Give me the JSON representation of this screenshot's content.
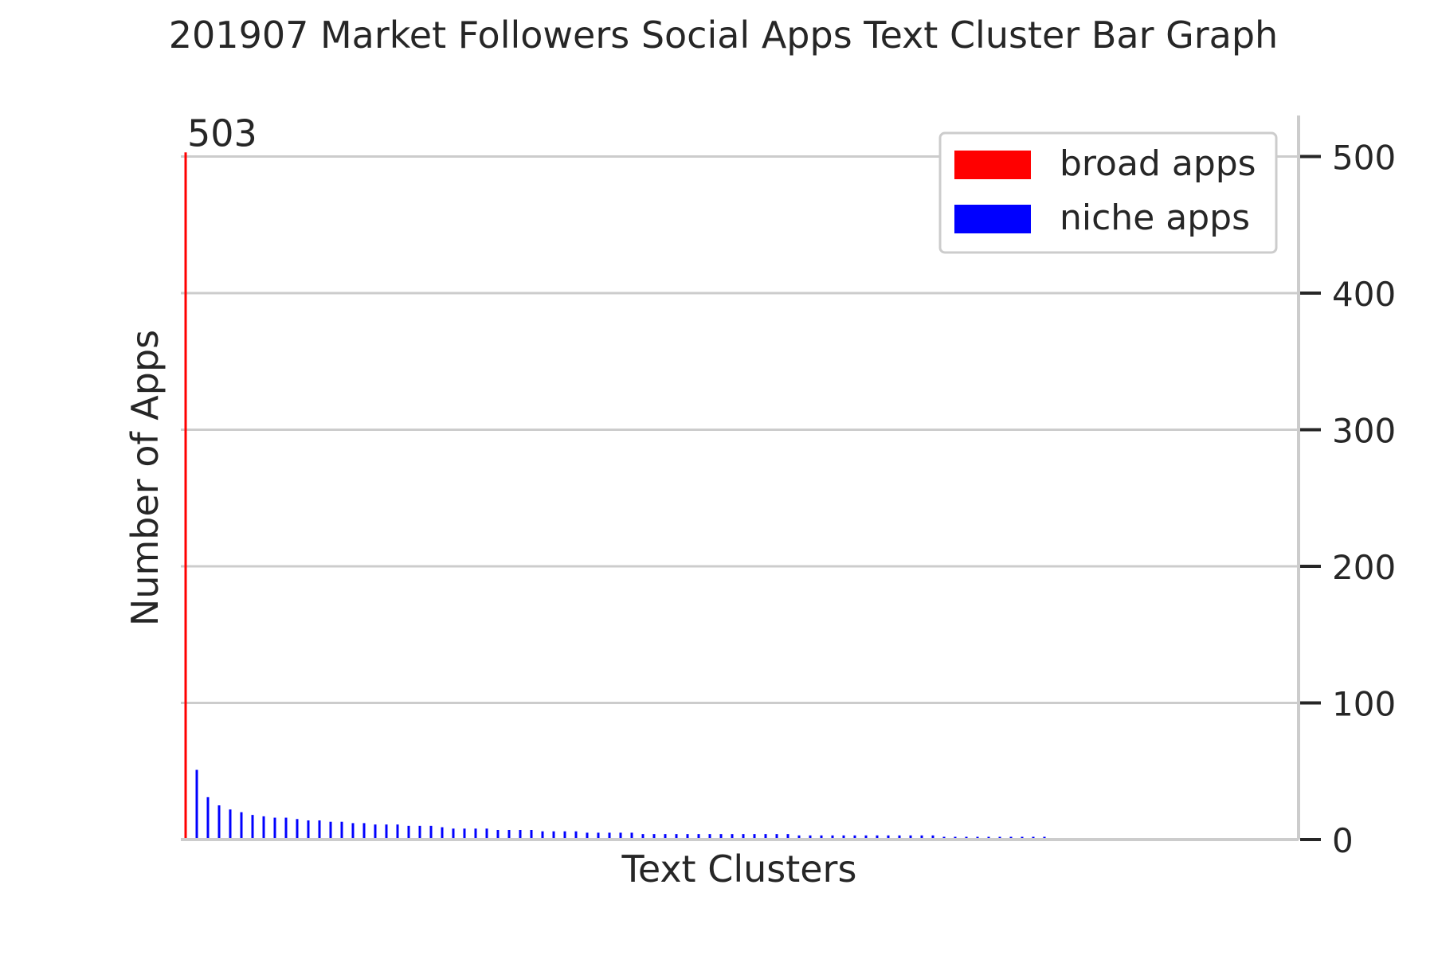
{
  "chart_data": {
    "type": "bar",
    "title": "201907 Market Followers Social Apps Text Cluster Bar Graph",
    "xlabel": "Text Clusters",
    "ylabel": "Number of Apps",
    "ylim": [
      0,
      530
    ],
    "y_ticks": [
      0,
      100,
      200,
      300,
      400,
      500
    ],
    "y_axis_side": "right",
    "grid": "horizontal",
    "legend_position": "top-right",
    "series": [
      {
        "name": "broad apps",
        "color": "#ff0000",
        "values": [
          503
        ]
      },
      {
        "name": "niche apps",
        "color": "#0000ff",
        "values": [
          51,
          31,
          25,
          22,
          20,
          18,
          17,
          16,
          16,
          15,
          14,
          14,
          13,
          13,
          12,
          12,
          11,
          11,
          11,
          10,
          10,
          10,
          9,
          8,
          8,
          8,
          8,
          7,
          7,
          7,
          7,
          6,
          6,
          6,
          6,
          5,
          5,
          5,
          5,
          5,
          4,
          4,
          4,
          4,
          4,
          4,
          4,
          4,
          4,
          4,
          4,
          4,
          4,
          4,
          3,
          3,
          3,
          3,
          3,
          3,
          3,
          3,
          3,
          3,
          3,
          3,
          3,
          2,
          2,
          2,
          2,
          2,
          2,
          2,
          2,
          2,
          2
        ]
      }
    ],
    "data_labels": [
      {
        "series": "broad apps",
        "index": 0,
        "text": "503"
      }
    ]
  }
}
